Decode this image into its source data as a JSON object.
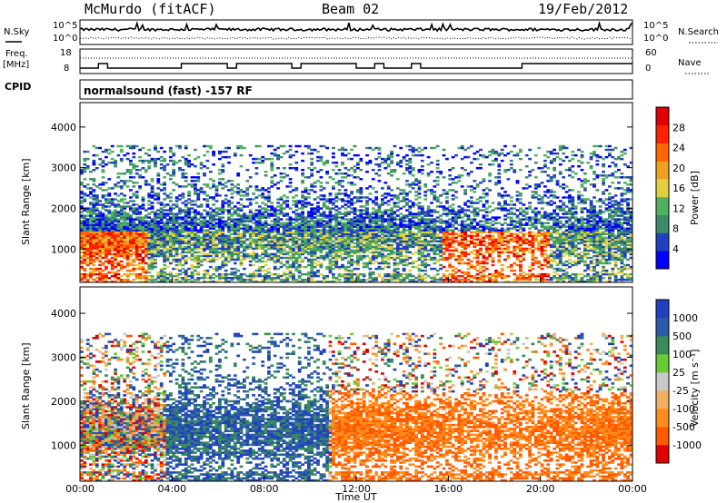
{
  "header": {
    "station": "McMurdo (fitACF)",
    "beam": "Beam 02",
    "date": "19/Feb/2012"
  },
  "left_labels": {
    "nsky": "N.Sky",
    "freq_line1": "Freq.",
    "freq_line2": "[MHz]",
    "cpid": "CPID"
  },
  "right_labels": {
    "nsearch": "N.Search",
    "nave": "Nave"
  },
  "noise_panel": {
    "left_ticks": [
      "10^5",
      "10^0"
    ],
    "right_ticks": [
      "10^5",
      "10^0"
    ]
  },
  "freq_panel": {
    "left_ticks": [
      "18",
      "8"
    ],
    "right_ticks": [
      "60",
      "0"
    ]
  },
  "cpid_text": "normalsound (fast) -157 RF",
  "time_axis": {
    "label": "Time UT",
    "ticks": [
      "00:00",
      "04:00",
      "08:00",
      "12:00",
      "16:00",
      "20:00",
      "00:00"
    ]
  },
  "colors": {
    "power_scale": [
      "#0000ff",
      "#2040c0",
      "#3d8a6a",
      "#4fb060",
      "#e0d040",
      "#f0a020",
      "#ff6600",
      "#ff2000",
      "#e00000"
    ],
    "velocity_scale": [
      "#e00000",
      "#ff5a00",
      "#ff8c1a",
      "#f0b060",
      "#c8c8c8",
      "#66cc33",
      "#3a8a5a",
      "#2a5aaa",
      "#2040c0"
    ]
  },
  "chart_data": [
    {
      "type": "heatmap",
      "title": "",
      "xlabel": "Time UT",
      "ylabel": "Slant Range [km]",
      "x_ticks": [
        "00:00",
        "04:00",
        "08:00",
        "12:00",
        "16:00",
        "20:00",
        "00:00"
      ],
      "y_ticks": [
        1000,
        2000,
        3000,
        4000
      ],
      "ylim": [
        180,
        4600
      ],
      "colorbar": {
        "label": "Power [dB]",
        "ticks": [
          "28",
          "24",
          "20",
          "16",
          "12",
          "8",
          "4"
        ],
        "range": [
          0,
          30
        ]
      }
    },
    {
      "type": "heatmap",
      "title": "",
      "xlabel": "Time UT",
      "ylabel": "Slant Range [km]",
      "x_ticks": [
        "00:00",
        "04:00",
        "08:00",
        "12:00",
        "16:00",
        "20:00",
        "00:00"
      ],
      "y_ticks": [
        1000,
        2000,
        3000,
        4000
      ],
      "ylim": [
        180,
        4600
      ],
      "colorbar": {
        "label": "Velocity [m s⁻¹]",
        "ticks": [
          "1000",
          "500",
          "100",
          "25",
          "-25",
          "-100",
          "-500",
          "-1000"
        ]
      }
    }
  ]
}
